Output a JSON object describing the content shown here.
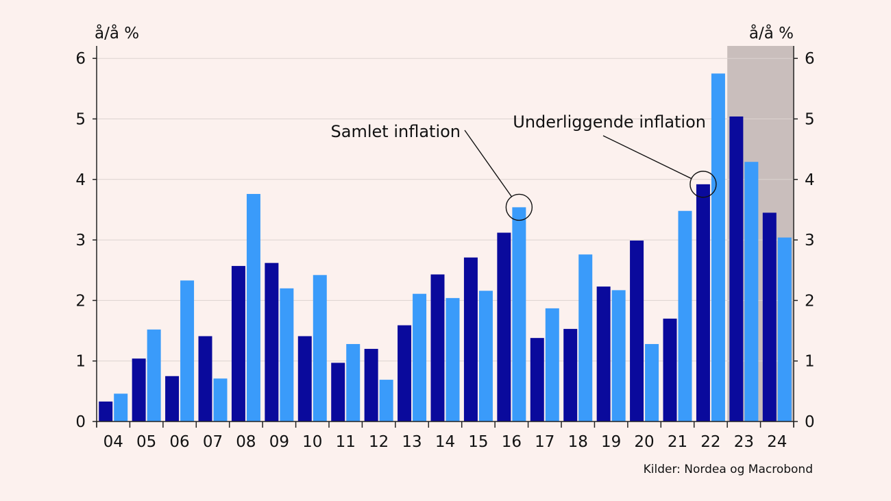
{
  "chart_data": {
    "type": "bar",
    "y_unit_left": "å/å %",
    "y_unit_right": "å/å %",
    "categories": [
      "04",
      "05",
      "06",
      "07",
      "08",
      "09",
      "10",
      "11",
      "12",
      "13",
      "14",
      "15",
      "16",
      "17",
      "18",
      "19",
      "20",
      "21",
      "22",
      "23",
      "24"
    ],
    "series": [
      {
        "name": "Underliggende inflation",
        "color": "#0a0a9c",
        "values": [
          0.33,
          1.04,
          0.75,
          1.41,
          2.57,
          2.62,
          1.41,
          0.97,
          1.2,
          1.59,
          2.43,
          2.71,
          3.12,
          1.38,
          1.53,
          2.23,
          2.99,
          1.7,
          3.92,
          5.04,
          3.45
        ]
      },
      {
        "name": "Samlet inflation",
        "color": "#3a9bfa",
        "values": [
          0.46,
          1.52,
          2.33,
          0.71,
          3.76,
          2.2,
          2.42,
          1.28,
          0.69,
          2.11,
          2.04,
          2.16,
          3.54,
          1.87,
          2.76,
          2.17,
          1.28,
          3.48,
          5.75,
          4.29,
          3.04
        ]
      }
    ],
    "ylim": [
      0,
      6.2
    ],
    "yticks": [
      "0",
      "1",
      "2",
      "3",
      "4",
      "5",
      "6"
    ],
    "shaded_forecast_from": "23",
    "annotations": [
      {
        "text": "Samlet inflation",
        "category": "16",
        "series": "Samlet inflation"
      },
      {
        "text": "Underliggende inflation",
        "category": "22",
        "series": "Underliggende inflation"
      }
    ],
    "source": "Kilder: Nordea og Macrobond",
    "colors": {
      "background": "#fcf1ee",
      "shade": "#c9bebc",
      "grid": "#dcd3d0",
      "axis": "#222222"
    }
  }
}
